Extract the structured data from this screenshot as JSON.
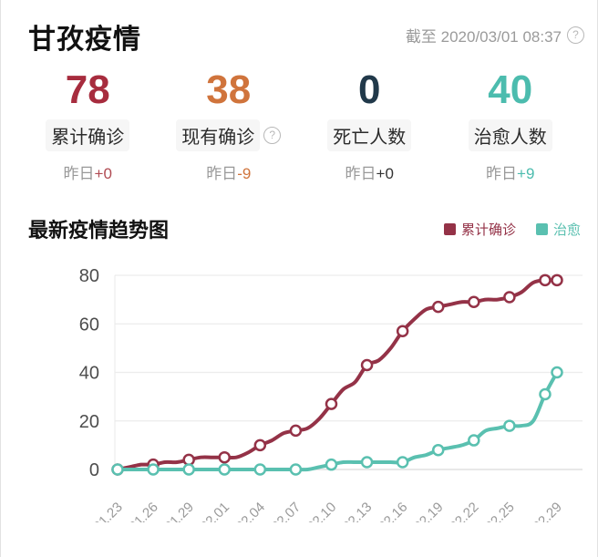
{
  "header": {
    "title": "甘孜疫情",
    "as_of": "截至 2020/03/01 08:37",
    "help_glyph": "?"
  },
  "stats": [
    {
      "value": "78",
      "label": "累计确诊",
      "delta_prefix": "昨日",
      "delta": "+0",
      "color": "#a72c3e",
      "delta_color": "#b04a52",
      "has_help": false
    },
    {
      "value": "38",
      "label": "现有确诊",
      "delta_prefix": "昨日",
      "delta": "-9",
      "color": "#d0743c",
      "delta_color": "#d0743c",
      "has_help": true
    },
    {
      "value": "0",
      "label": "死亡人数",
      "delta_prefix": "昨日",
      "delta": "+0",
      "color": "#21394a",
      "delta_color": "#333333",
      "has_help": false
    },
    {
      "value": "40",
      "label": "治愈人数",
      "delta_prefix": "昨日",
      "delta": "+9",
      "color": "#4cbcae",
      "delta_color": "#4cbcae",
      "has_help": false
    }
  ],
  "chart_section": {
    "title": "最新疫情趋势图"
  },
  "chart_data": {
    "type": "line",
    "title": "最新疫情趋势图",
    "x": [
      "01.23",
      "01.24",
      "01.25",
      "01.26",
      "01.27",
      "01.28",
      "01.29",
      "01.30",
      "01.31",
      "02.01",
      "02.02",
      "02.03",
      "02.04",
      "02.05",
      "02.06",
      "02.07",
      "02.08",
      "02.09",
      "02.10",
      "02.11",
      "02.12",
      "02.13",
      "02.14",
      "02.15",
      "02.16",
      "02.17",
      "02.18",
      "02.19",
      "02.20",
      "02.21",
      "02.22",
      "02.23",
      "02.24",
      "02.25",
      "02.26",
      "02.27",
      "02.28",
      "02.29"
    ],
    "series": [
      {
        "name": "累计确诊",
        "color": "#943247",
        "values": [
          0,
          1,
          2,
          2,
          3,
          3,
          4,
          5,
          5,
          5,
          5,
          7,
          10,
          12,
          15,
          16,
          17,
          21,
          27,
          33,
          36,
          43,
          45,
          50,
          57,
          62,
          66,
          67,
          68,
          69,
          69,
          70,
          70,
          71,
          73,
          77,
          78,
          78
        ]
      },
      {
        "name": "治愈",
        "color": "#5ac0b0",
        "values": [
          0,
          0,
          0,
          0,
          0,
          0,
          0,
          0,
          0,
          0,
          0,
          0,
          0,
          0,
          0,
          0,
          0,
          1,
          2,
          3,
          3,
          3,
          3,
          3,
          3,
          5,
          6,
          8,
          9,
          10,
          12,
          16,
          17,
          18,
          18,
          20,
          31,
          40
        ]
      }
    ],
    "ylim": [
      0,
      80
    ],
    "yticks": [
      0,
      20,
      40,
      60,
      80
    ],
    "x_label_indices": [
      0,
      3,
      6,
      9,
      12,
      15,
      18,
      21,
      24,
      27,
      30,
      33,
      37
    ],
    "marker_indices": [
      0,
      3,
      6,
      9,
      12,
      15,
      18,
      21,
      24,
      27,
      30,
      33,
      36,
      37
    ],
    "grid": true,
    "legend_position": "top-right"
  }
}
